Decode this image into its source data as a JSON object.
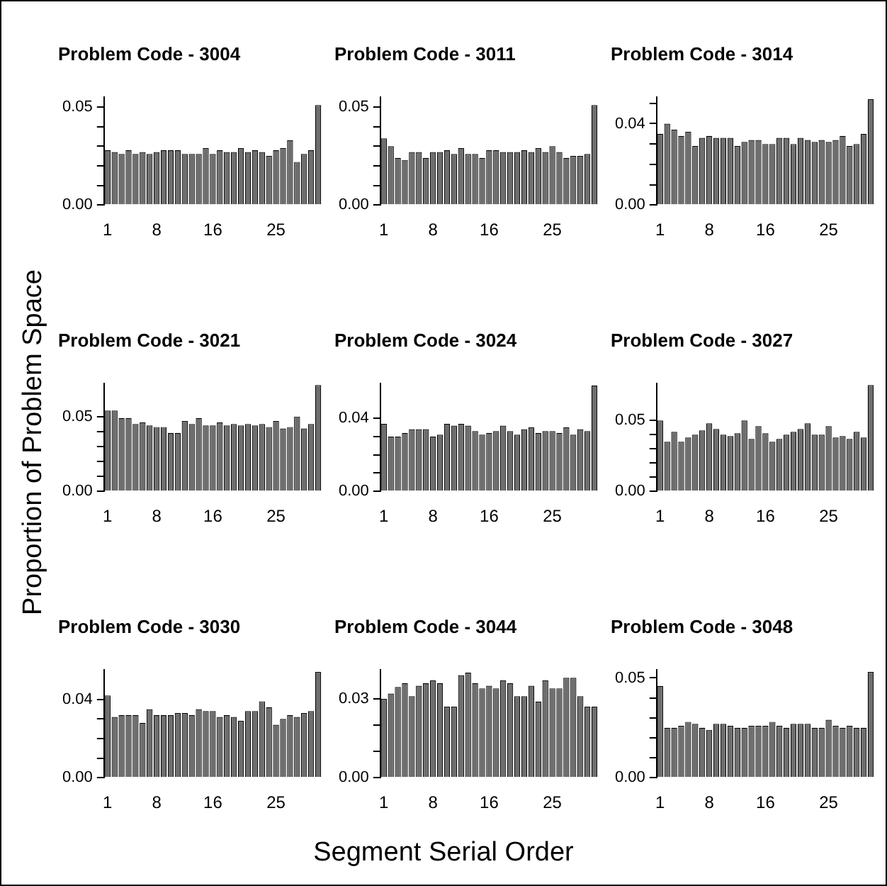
{
  "chart_data": [
    {
      "type": "bar",
      "title": "Problem Code - 3004",
      "color": "#6e6e6e",
      "categories": [
        "1",
        null,
        null,
        null,
        null,
        null,
        null,
        "8",
        null,
        null,
        null,
        null,
        null,
        null,
        null,
        "16",
        null,
        null,
        null,
        null,
        null,
        null,
        null,
        null,
        "25",
        null,
        null,
        null,
        null,
        null,
        null
      ],
      "values": [
        0.028,
        0.027,
        0.026,
        0.028,
        0.026,
        0.027,
        0.026,
        0.027,
        0.028,
        0.028,
        0.028,
        0.026,
        0.026,
        0.026,
        0.029,
        0.026,
        0.028,
        0.027,
        0.027,
        0.029,
        0.027,
        0.028,
        0.027,
        0.025,
        0.028,
        0.029,
        0.033,
        0.022,
        0.026,
        0.028,
        0.051
      ],
      "ylim": [
        0,
        0.055
      ],
      "yticks": [
        {
          "value": 0,
          "label": "0.00"
        },
        {
          "value": 0.01,
          "label": null
        },
        {
          "value": 0.02,
          "label": null
        },
        {
          "value": 0.03,
          "label": null
        },
        {
          "value": 0.04,
          "label": null
        },
        {
          "value": 0.05,
          "label": "0.05"
        }
      ]
    },
    {
      "type": "bar",
      "title": "Problem Code - 3011",
      "color": "#6e6e6e",
      "categories": [
        "1",
        null,
        null,
        null,
        null,
        null,
        null,
        "8",
        null,
        null,
        null,
        null,
        null,
        null,
        null,
        "16",
        null,
        null,
        null,
        null,
        null,
        null,
        null,
        null,
        "25",
        null,
        null,
        null,
        null,
        null,
        null
      ],
      "values": [
        0.034,
        0.03,
        0.024,
        0.023,
        0.027,
        0.027,
        0.024,
        0.027,
        0.027,
        0.028,
        0.026,
        0.029,
        0.026,
        0.026,
        0.024,
        0.028,
        0.028,
        0.027,
        0.027,
        0.027,
        0.028,
        0.027,
        0.029,
        0.027,
        0.03,
        0.027,
        0.024,
        0.025,
        0.025,
        0.026,
        0.051
      ],
      "ylim": [
        0,
        0.055
      ],
      "yticks": [
        {
          "value": 0,
          "label": "0.00"
        },
        {
          "value": 0.01,
          "label": null
        },
        {
          "value": 0.02,
          "label": null
        },
        {
          "value": 0.03,
          "label": null
        },
        {
          "value": 0.04,
          "label": null
        },
        {
          "value": 0.05,
          "label": "0.05"
        }
      ]
    },
    {
      "type": "bar",
      "title": "Problem Code - 3014",
      "color": "#6e6e6e",
      "categories": [
        "1",
        null,
        null,
        null,
        null,
        null,
        null,
        "8",
        null,
        null,
        null,
        null,
        null,
        null,
        null,
        "16",
        null,
        null,
        null,
        null,
        null,
        null,
        null,
        null,
        "25",
        null,
        null,
        null,
        null,
        null,
        null
      ],
      "values": [
        0.035,
        0.04,
        0.037,
        0.034,
        0.036,
        0.029,
        0.033,
        0.034,
        0.033,
        0.033,
        0.033,
        0.029,
        0.031,
        0.032,
        0.032,
        0.03,
        0.03,
        0.033,
        0.033,
        0.03,
        0.033,
        0.032,
        0.031,
        0.032,
        0.031,
        0.032,
        0.034,
        0.029,
        0.03,
        0.035,
        0.052
      ],
      "ylim": [
        0,
        0.053
      ],
      "yticks": [
        {
          "value": 0,
          "label": "0.00"
        },
        {
          "value": 0.01,
          "label": null
        },
        {
          "value": 0.02,
          "label": null
        },
        {
          "value": 0.03,
          "label": null
        },
        {
          "value": 0.04,
          "label": "0.04"
        },
        {
          "value": 0.05,
          "label": null
        }
      ]
    },
    {
      "type": "bar",
      "title": "Problem Code - 3021",
      "color": "#6e6e6e",
      "ylabel": "Proportion of Problem Space",
      "categories": [
        "1",
        null,
        null,
        null,
        null,
        null,
        null,
        "8",
        null,
        null,
        null,
        null,
        null,
        null,
        null,
        "16",
        null,
        null,
        null,
        null,
        null,
        null,
        null,
        null,
        "25",
        null,
        null,
        null,
        null,
        null,
        null
      ],
      "values": [
        0.054,
        0.054,
        0.049,
        0.049,
        0.045,
        0.046,
        0.044,
        0.043,
        0.043,
        0.039,
        0.039,
        0.047,
        0.045,
        0.049,
        0.044,
        0.044,
        0.046,
        0.044,
        0.045,
        0.044,
        0.045,
        0.044,
        0.045,
        0.043,
        0.047,
        0.042,
        0.043,
        0.05,
        0.042,
        0.045,
        0.071
      ],
      "ylim": [
        0,
        0.072
      ],
      "yticks": [
        {
          "value": 0,
          "label": "0.00"
        },
        {
          "value": 0.01,
          "label": null
        },
        {
          "value": 0.02,
          "label": null
        },
        {
          "value": 0.03,
          "label": null
        },
        {
          "value": 0.04,
          "label": null
        },
        {
          "value": 0.05,
          "label": "0.05"
        }
      ]
    },
    {
      "type": "bar",
      "title": "Problem Code - 3024",
      "color": "#6e6e6e",
      "categories": [
        "1",
        null,
        null,
        null,
        null,
        null,
        null,
        "8",
        null,
        null,
        null,
        null,
        null,
        null,
        null,
        "16",
        null,
        null,
        null,
        null,
        null,
        null,
        null,
        null,
        "25",
        null,
        null,
        null,
        null,
        null,
        null
      ],
      "values": [
        0.037,
        0.03,
        0.03,
        0.032,
        0.034,
        0.034,
        0.034,
        0.03,
        0.031,
        0.037,
        0.036,
        0.037,
        0.036,
        0.033,
        0.031,
        0.032,
        0.033,
        0.036,
        0.033,
        0.031,
        0.034,
        0.035,
        0.032,
        0.033,
        0.033,
        0.032,
        0.035,
        0.031,
        0.034,
        0.033,
        0.058
      ],
      "ylim": [
        0,
        0.059
      ],
      "yticks": [
        {
          "value": 0,
          "label": "0.00"
        },
        {
          "value": 0.01,
          "label": null
        },
        {
          "value": 0.02,
          "label": null
        },
        {
          "value": 0.03,
          "label": null
        },
        {
          "value": 0.04,
          "label": "0.04"
        }
      ]
    },
    {
      "type": "bar",
      "title": "Problem Code - 3027",
      "color": "#6e6e6e",
      "categories": [
        "1",
        null,
        null,
        null,
        null,
        null,
        null,
        "8",
        null,
        null,
        null,
        null,
        null,
        null,
        null,
        "16",
        null,
        null,
        null,
        null,
        null,
        null,
        null,
        null,
        "25",
        null,
        null,
        null,
        null,
        null,
        null
      ],
      "values": [
        0.05,
        0.035,
        0.042,
        0.035,
        0.038,
        0.04,
        0.043,
        0.048,
        0.044,
        0.04,
        0.039,
        0.041,
        0.05,
        0.037,
        0.046,
        0.041,
        0.035,
        0.037,
        0.04,
        0.042,
        0.044,
        0.048,
        0.04,
        0.04,
        0.046,
        0.038,
        0.039,
        0.037,
        0.042,
        0.038,
        0.075
      ],
      "ylim": [
        0,
        0.076
      ],
      "yticks": [
        {
          "value": 0,
          "label": "0.00"
        },
        {
          "value": 0.01,
          "label": null
        },
        {
          "value": 0.02,
          "label": null
        },
        {
          "value": 0.03,
          "label": null
        },
        {
          "value": 0.04,
          "label": null
        },
        {
          "value": 0.05,
          "label": "0.05"
        }
      ]
    },
    {
      "type": "bar",
      "title": "Problem Code - 3030",
      "color": "#6e6e6e",
      "categories": [
        "1",
        null,
        null,
        null,
        null,
        null,
        null,
        "8",
        null,
        null,
        null,
        null,
        null,
        null,
        null,
        "16",
        null,
        null,
        null,
        null,
        null,
        null,
        null,
        null,
        "25",
        null,
        null,
        null,
        null,
        null,
        null
      ],
      "values": [
        0.042,
        0.031,
        0.032,
        0.032,
        0.032,
        0.028,
        0.035,
        0.032,
        0.032,
        0.032,
        0.033,
        0.033,
        0.032,
        0.035,
        0.034,
        0.034,
        0.031,
        0.032,
        0.031,
        0.029,
        0.034,
        0.034,
        0.039,
        0.036,
        0.027,
        0.03,
        0.032,
        0.031,
        0.033,
        0.034,
        0.054
      ],
      "ylim": [
        0,
        0.055
      ],
      "yticks": [
        {
          "value": 0,
          "label": "0.00"
        },
        {
          "value": 0.01,
          "label": null
        },
        {
          "value": 0.02,
          "label": null
        },
        {
          "value": 0.03,
          "label": null
        },
        {
          "value": 0.04,
          "label": "0.04"
        }
      ]
    },
    {
      "type": "bar",
      "title": "Problem Code - 3044",
      "color": "#6e6e6e",
      "xlabel": "Segment Serial Order",
      "categories": [
        "1",
        null,
        null,
        null,
        null,
        null,
        null,
        "8",
        null,
        null,
        null,
        null,
        null,
        null,
        null,
        "16",
        null,
        null,
        null,
        null,
        null,
        null,
        null,
        null,
        "25",
        null,
        null,
        null,
        null,
        null,
        null
      ],
      "values": [
        0.03,
        0.032,
        0.0345,
        0.036,
        0.031,
        0.035,
        0.036,
        0.037,
        0.036,
        0.027,
        0.027,
        0.039,
        0.04,
        0.036,
        0.034,
        0.035,
        0.034,
        0.037,
        0.036,
        0.031,
        0.031,
        0.035,
        0.029,
        0.037,
        0.034,
        0.034,
        0.038,
        0.038,
        0.031,
        0.027,
        0.027
      ],
      "ylim": [
        0,
        0.041
      ],
      "yticks": [
        {
          "value": 0,
          "label": "0.00"
        },
        {
          "value": 0.01,
          "label": null
        },
        {
          "value": 0.02,
          "label": null
        },
        {
          "value": 0.03,
          "label": "0.03"
        }
      ]
    },
    {
      "type": "bar",
      "title": "Problem Code - 3048",
      "color": "#6e6e6e",
      "categories": [
        "1",
        null,
        null,
        null,
        null,
        null,
        null,
        "8",
        null,
        null,
        null,
        null,
        null,
        null,
        null,
        "16",
        null,
        null,
        null,
        null,
        null,
        null,
        null,
        null,
        "25",
        null,
        null,
        null,
        null,
        null,
        null
      ],
      "values": [
        0.046,
        0.025,
        0.025,
        0.026,
        0.028,
        0.027,
        0.025,
        0.024,
        0.027,
        0.027,
        0.026,
        0.025,
        0.025,
        0.026,
        0.026,
        0.026,
        0.028,
        0.026,
        0.025,
        0.027,
        0.027,
        0.027,
        0.025,
        0.025,
        0.029,
        0.026,
        0.025,
        0.026,
        0.025,
        0.025,
        0.053
      ],
      "ylim": [
        0,
        0.054
      ],
      "yticks": [
        {
          "value": 0,
          "label": "0.00"
        },
        {
          "value": 0.01,
          "label": null
        },
        {
          "value": 0.02,
          "label": null
        },
        {
          "value": 0.03,
          "label": null
        },
        {
          "value": 0.04,
          "label": null
        },
        {
          "value": 0.05,
          "label": "0.05"
        }
      ]
    }
  ]
}
